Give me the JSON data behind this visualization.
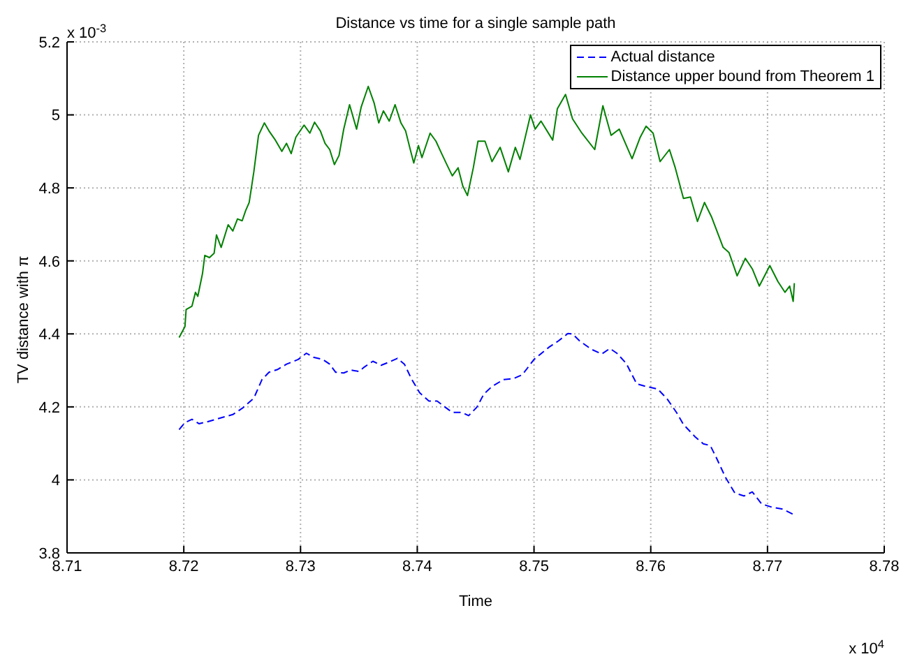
{
  "chart_data": {
    "type": "line",
    "title": "Distance vs time for a single sample path",
    "xlabel": "Time",
    "ylabel": "TV distance with π",
    "annotations": [
      "x 10$^{-3}$",
      "x 10$^{4}$"
    ],
    "xlim": [
      8.71,
      8.78
    ],
    "xticks": [
      8.71,
      8.72,
      8.73,
      8.74,
      8.75,
      8.76,
      8.77,
      8.78
    ],
    "ylim": [
      3.8,
      5.2
    ],
    "yticks": [
      3.8,
      4,
      4.2,
      4.4,
      4.6,
      4.8,
      5,
      5.2
    ],
    "grid": true,
    "legend": "top right",
    "marker": "none",
    "series": [
      {
        "name": "Actual distance",
        "color": "#0000ff",
        "line_style": "dashed",
        "x": [
          8.7196,
          8.7201,
          8.7207,
          8.7213,
          8.722,
          8.7234,
          8.7242,
          8.725,
          8.726,
          8.7267,
          8.7273,
          8.728,
          8.7288,
          8.7298,
          8.7305,
          8.7311,
          8.7319,
          8.7325,
          8.733,
          8.7337,
          8.7343,
          8.735,
          8.7355,
          8.7362,
          8.7369,
          8.7376,
          8.7383,
          8.7389,
          8.7395,
          8.7402,
          8.741,
          8.7417,
          8.7424,
          8.743,
          8.7438,
          8.7444,
          8.7451,
          8.7457,
          8.7464,
          8.7474,
          8.7482,
          8.749,
          8.75,
          8.7513,
          8.7521,
          8.7529,
          8.7533,
          8.7539,
          8.7549,
          8.7558,
          8.7565,
          8.7571,
          8.7579,
          8.7588,
          8.7596,
          8.7606,
          8.7614,
          8.7622,
          8.7628,
          8.7638,
          8.7645,
          8.7651,
          8.7656,
          8.7664,
          8.7672,
          8.768,
          8.7687,
          8.7695,
          8.7703,
          8.7713,
          8.7723
        ],
        "values": [
          4.138,
          4.157,
          4.166,
          4.154,
          4.159,
          4.172,
          4.179,
          4.196,
          4.224,
          4.275,
          4.295,
          4.302,
          4.317,
          4.33,
          4.347,
          4.336,
          4.33,
          4.317,
          4.295,
          4.293,
          4.301,
          4.297,
          4.31,
          4.325,
          4.314,
          4.323,
          4.333,
          4.317,
          4.277,
          4.239,
          4.216,
          4.216,
          4.199,
          4.185,
          4.185,
          4.176,
          4.199,
          4.235,
          4.256,
          4.275,
          4.277,
          4.288,
          4.33,
          4.364,
          4.381,
          4.401,
          4.4,
          4.381,
          4.358,
          4.345,
          4.36,
          4.347,
          4.319,
          4.263,
          4.256,
          4.249,
          4.222,
          4.185,
          4.152,
          4.118,
          4.099,
          4.094,
          4.062,
          4.007,
          3.964,
          3.956,
          3.967,
          3.934,
          3.926,
          3.92,
          3.904
        ]
      },
      {
        "name": "Distance upper bound from Theorem 1",
        "color": "#008000",
        "line_style": "solid",
        "x": [
          8.7196,
          8.7201,
          8.7202,
          8.7207,
          8.721,
          8.7212,
          8.7216,
          8.7218,
          8.7222,
          8.7226,
          8.7228,
          8.7232,
          8.7238,
          8.7242,
          8.7246,
          8.725,
          8.7253,
          8.7256,
          8.726,
          8.7264,
          8.7269,
          8.7273,
          8.7278,
          8.7284,
          8.7288,
          8.7292,
          8.7296,
          8.7303,
          8.7308,
          8.7312,
          8.7317,
          8.7321,
          8.7325,
          8.7329,
          8.7333,
          8.7337,
          8.7342,
          8.7348,
          8.7352,
          8.7358,
          8.7363,
          8.7367,
          8.7371,
          8.7376,
          8.7381,
          8.7386,
          8.739,
          8.7394,
          8.7397,
          8.7401,
          8.7404,
          8.7411,
          8.7416,
          8.742,
          8.7425,
          8.743,
          8.7435,
          8.7439,
          8.7443,
          8.7448,
          8.7452,
          8.7458,
          8.7464,
          8.7471,
          8.7478,
          8.7484,
          8.7488,
          8.7497,
          8.7501,
          8.7506,
          8.7516,
          8.752,
          8.7527,
          8.7533,
          8.7541,
          8.7552,
          8.7559,
          8.7566,
          8.7573,
          8.7584,
          8.7591,
          8.7596,
          8.7602,
          8.7608,
          8.7616,
          8.7621,
          8.7628,
          8.7634,
          8.764,
          8.7646,
          8.7652,
          8.7662,
          8.7667,
          8.7674,
          8.7681,
          8.7687,
          8.7693,
          8.7702,
          8.7709,
          8.7715,
          8.7719,
          8.7722,
          8.7723
        ],
        "values": [
          4.39,
          4.42,
          4.467,
          4.476,
          4.514,
          4.503,
          4.565,
          4.615,
          4.609,
          4.621,
          4.671,
          4.637,
          4.699,
          4.682,
          4.715,
          4.71,
          4.738,
          4.76,
          4.844,
          4.944,
          4.978,
          4.956,
          4.933,
          4.9,
          4.922,
          4.894,
          4.939,
          4.972,
          4.95,
          4.98,
          4.956,
          4.922,
          4.905,
          4.864,
          4.889,
          4.961,
          5.028,
          4.961,
          5.022,
          5.078,
          5.033,
          4.978,
          5.011,
          4.983,
          5.028,
          4.978,
          4.956,
          4.905,
          4.868,
          4.916,
          4.883,
          4.95,
          4.928,
          4.9,
          4.866,
          4.833,
          4.855,
          4.805,
          4.779,
          4.855,
          4.928,
          4.928,
          4.872,
          4.911,
          4.844,
          4.911,
          4.878,
          5,
          4.961,
          4.983,
          4.931,
          5.017,
          5.056,
          4.989,
          4.95,
          4.905,
          5.025,
          4.944,
          4.961,
          4.88,
          4.939,
          4.969,
          4.95,
          4.872,
          4.905,
          4.855,
          4.771,
          4.775,
          4.708,
          4.76,
          4.721,
          4.637,
          4.623,
          4.559,
          4.607,
          4.578,
          4.531,
          4.587,
          4.543,
          4.514,
          4.531,
          4.489,
          4.539
        ]
      }
    ]
  }
}
